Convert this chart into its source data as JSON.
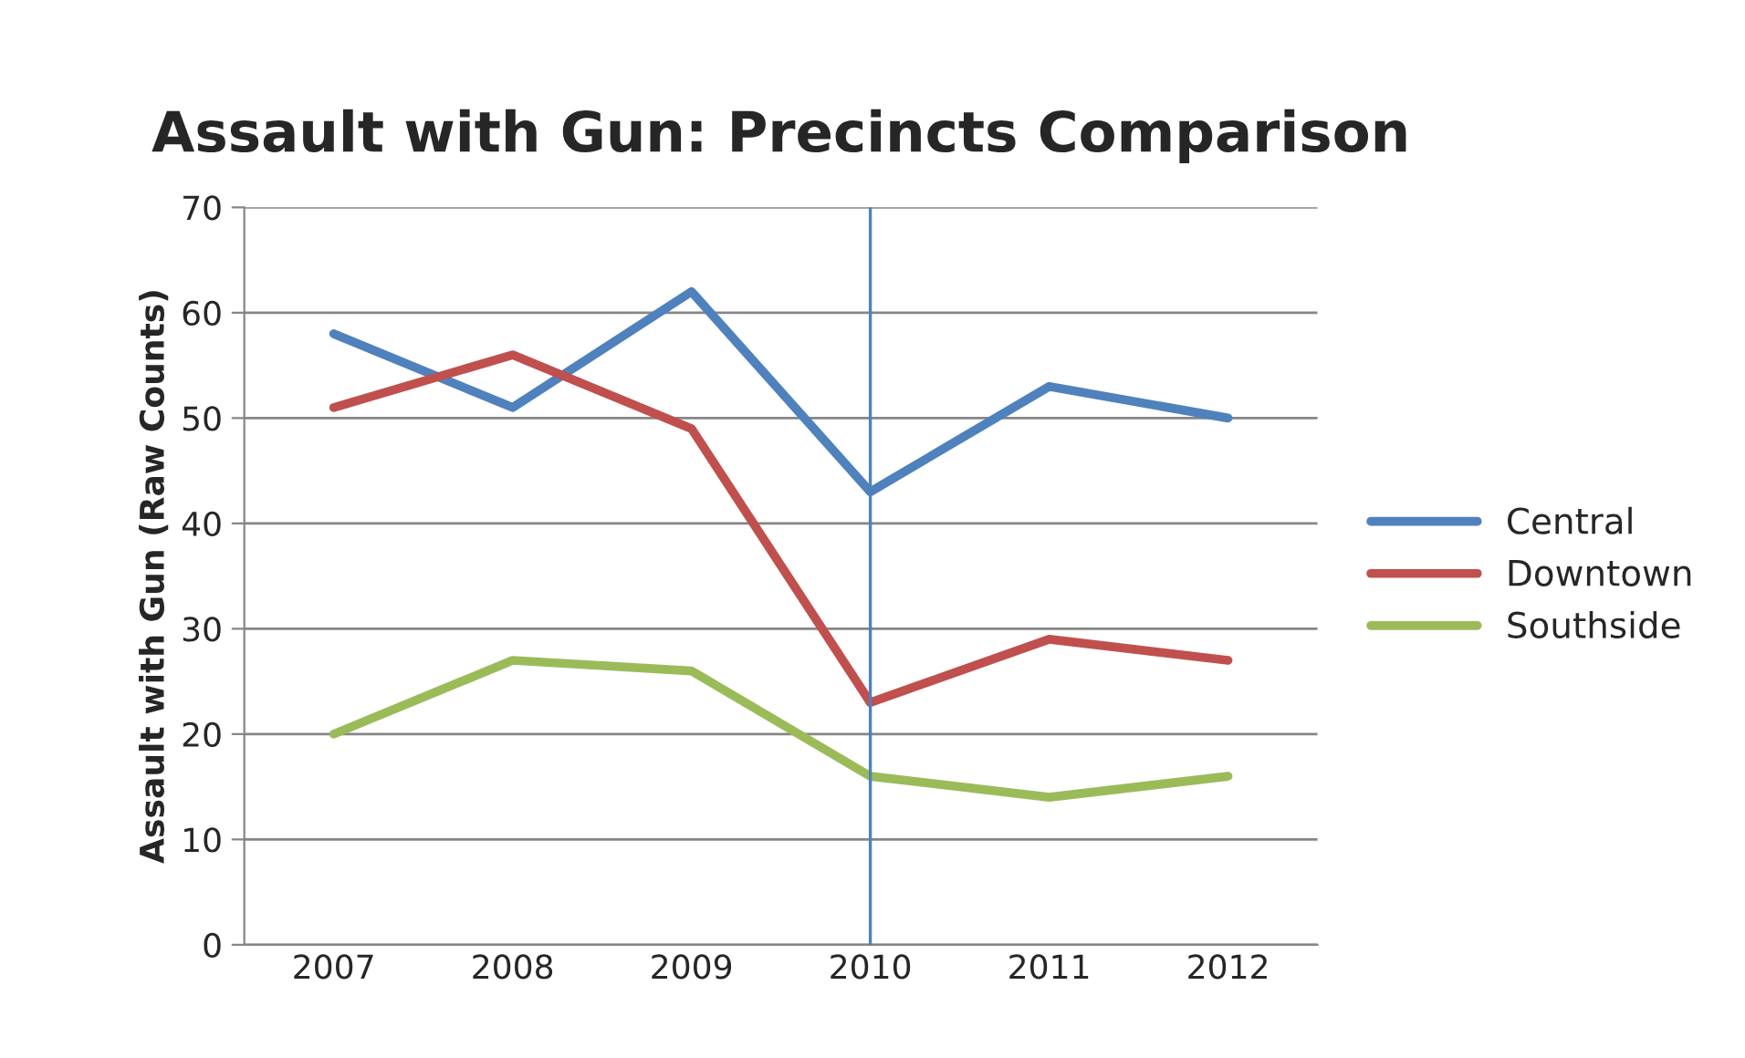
{
  "chart_data": {
    "type": "line",
    "title": "Assault with Gun: Precincts Comparison",
    "ylabel": "Assault with Gun (Raw Counts)",
    "categories": [
      "2007",
      "2008",
      "2009",
      "2010",
      "2011",
      "2012"
    ],
    "series": [
      {
        "name": "Central",
        "color": "#4f81bd",
        "values": [
          58,
          51,
          62,
          43,
          53,
          50
        ]
      },
      {
        "name": "Downtown",
        "color": "#c0504d",
        "values": [
          51,
          56,
          49,
          23,
          29,
          27
        ]
      },
      {
        "name": "Southside",
        "color": "#9bbb59",
        "values": [
          20,
          27,
          26,
          16,
          14,
          16
        ]
      }
    ],
    "ylim": [
      0,
      70
    ],
    "yticks": [
      0,
      10,
      20,
      30,
      40,
      50,
      60,
      70
    ],
    "ref_lines": [
      {
        "axis": "x",
        "value": "2010",
        "color": "#4f81bd"
      }
    ],
    "grid": "y",
    "legend": "right",
    "marker": "none",
    "line_style": "solid"
  }
}
